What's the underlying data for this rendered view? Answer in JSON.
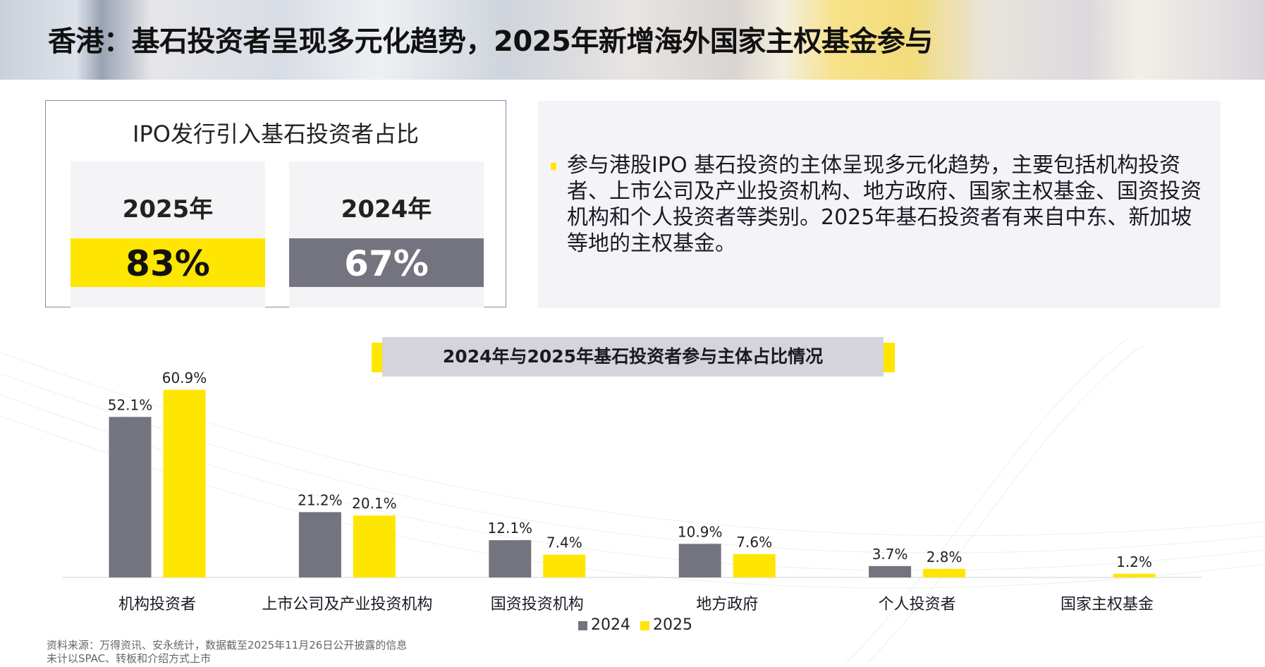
{
  "title": "香港：基石投资者呈现多元化趋势，2025年新增海外国家主权基金参与",
  "left_panel": {
    "title": "IPO发行引入基石投资者占比",
    "columns": [
      {
        "year": "2025年",
        "value": "83%",
        "color": "#ffe600",
        "text_color": "#111111"
      },
      {
        "year": "2024年",
        "value": "67%",
        "color": "#747480",
        "text_color": "#ffffff"
      }
    ]
  },
  "right_panel": {
    "bullet": "参与港股IPO 基石投资的主体呈现多元化趋势，主要包括机构投资者、上市公司及产业投资机构、地方政府、国家主权基金、国资投资机构和个人投资者等类别。2025年基石投资者有来自中东、新加坡等地的主权基金。"
  },
  "chart_data": {
    "type": "bar",
    "title": "2024年与2025年基石投资者参与主体占比情况",
    "categories": [
      "机构投资者",
      "上市公司及产业投资机构",
      "国资投资机构",
      "地方政府",
      "个人投资者",
      "国家主权基金"
    ],
    "series": [
      {
        "name": "2024",
        "color": "#747480",
        "values": [
          52.1,
          21.2,
          12.1,
          10.9,
          3.7,
          null
        ],
        "labels": [
          "52.1%",
          "21.2%",
          "12.1%",
          "10.9%",
          "3.7%",
          ""
        ]
      },
      {
        "name": "2025",
        "color": "#ffe600",
        "values": [
          60.9,
          20.1,
          7.4,
          7.6,
          2.8,
          1.2
        ],
        "labels": [
          "60.9%",
          "20.1%",
          "7.4%",
          "7.6%",
          "2.8%",
          "1.2%"
        ]
      }
    ],
    "unit": "%",
    "legend": "bottom"
  },
  "footnotes": [
    "资料来源：万得资讯、安永统计，数据截至2025年11月26日公开披露的信息",
    "未计以SPAC、转板和介绍方式上市"
  ]
}
